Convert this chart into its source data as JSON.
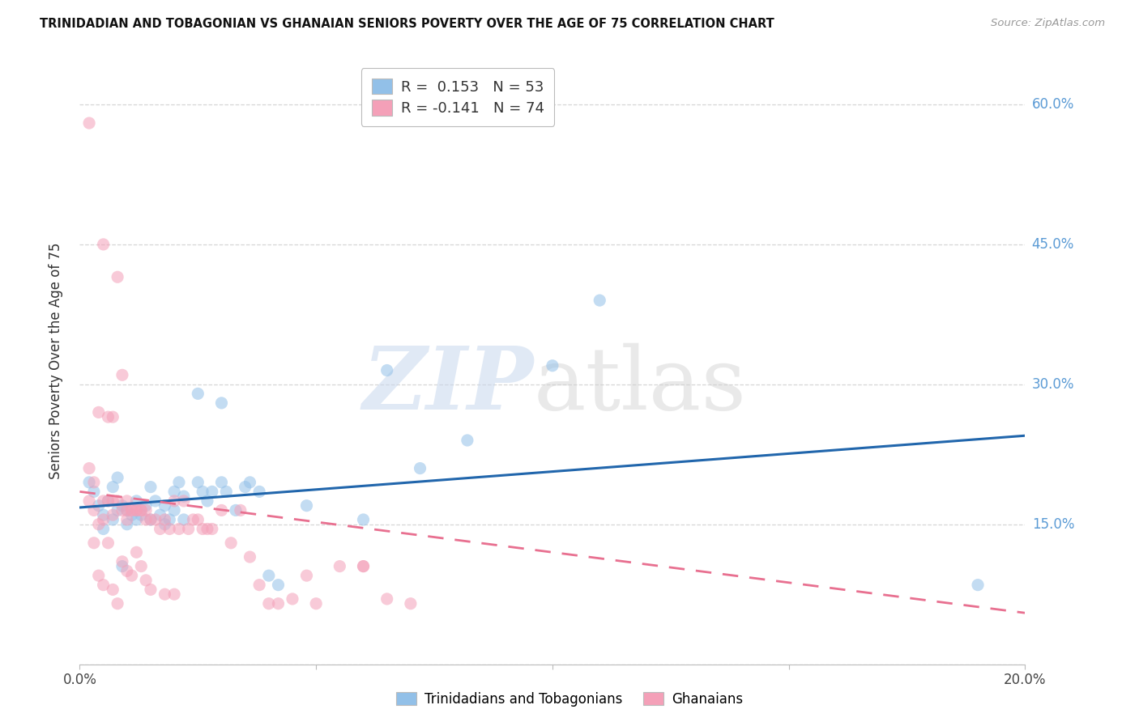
{
  "title": "TRINIDADIAN AND TOBAGONIAN VS GHANAIAN SENIORS POVERTY OVER THE AGE OF 75 CORRELATION CHART",
  "source": "Source: ZipAtlas.com",
  "ylabel": "Seniors Poverty Over the Age of 75",
  "xlim": [
    0.0,
    0.2
  ],
  "ylim": [
    0.0,
    0.65
  ],
  "yticks": [
    0.0,
    0.15,
    0.3,
    0.45,
    0.6
  ],
  "xticks": [
    0.0,
    0.05,
    0.1,
    0.15,
    0.2
  ],
  "xtick_labels": [
    "0.0%",
    "",
    "",
    "",
    "20.0%"
  ],
  "right_ytick_labels_vals": [
    0.6,
    0.45,
    0.3,
    0.15
  ],
  "right_ytick_labels_text": [
    "60.0%",
    "45.0%",
    "30.0%",
    "15.0%"
  ],
  "legend1_r": "0.153",
  "legend1_n": "53",
  "legend2_r": "-0.141",
  "legend2_n": "74",
  "color_blue": "#92C0E8",
  "color_pink": "#F4A0B8",
  "line_blue": "#2166AC",
  "line_pink": "#E87090",
  "legend_labels": [
    "Trinidadians and Tobagonians",
    "Ghanaians"
  ],
  "blue_trend": [
    0.0,
    0.168,
    0.2,
    0.245
  ],
  "pink_trend": [
    0.0,
    0.185,
    0.2,
    0.055
  ],
  "blue_scatter_x": [
    0.002,
    0.003,
    0.004,
    0.005,
    0.005,
    0.006,
    0.007,
    0.007,
    0.008,
    0.008,
    0.009,
    0.01,
    0.01,
    0.011,
    0.012,
    0.012,
    0.013,
    0.014,
    0.015,
    0.015,
    0.016,
    0.017,
    0.018,
    0.018,
    0.019,
    0.02,
    0.02,
    0.021,
    0.022,
    0.022,
    0.025,
    0.026,
    0.027,
    0.028,
    0.03,
    0.031,
    0.033,
    0.035,
    0.036,
    0.038,
    0.04,
    0.042,
    0.048,
    0.06,
    0.065,
    0.072,
    0.082,
    0.1,
    0.11,
    0.19,
    0.025,
    0.03,
    0.009
  ],
  "blue_scatter_y": [
    0.195,
    0.185,
    0.17,
    0.16,
    0.145,
    0.175,
    0.155,
    0.19,
    0.165,
    0.2,
    0.17,
    0.165,
    0.15,
    0.16,
    0.155,
    0.175,
    0.16,
    0.17,
    0.155,
    0.19,
    0.175,
    0.16,
    0.17,
    0.15,
    0.155,
    0.185,
    0.165,
    0.195,
    0.155,
    0.18,
    0.195,
    0.185,
    0.175,
    0.185,
    0.195,
    0.185,
    0.165,
    0.19,
    0.195,
    0.185,
    0.095,
    0.085,
    0.17,
    0.155,
    0.315,
    0.21,
    0.24,
    0.32,
    0.39,
    0.085,
    0.29,
    0.28,
    0.105
  ],
  "pink_scatter_x": [
    0.002,
    0.003,
    0.003,
    0.004,
    0.004,
    0.005,
    0.005,
    0.005,
    0.006,
    0.006,
    0.007,
    0.007,
    0.007,
    0.008,
    0.008,
    0.009,
    0.009,
    0.01,
    0.01,
    0.01,
    0.011,
    0.011,
    0.012,
    0.012,
    0.013,
    0.013,
    0.014,
    0.014,
    0.015,
    0.015,
    0.016,
    0.017,
    0.018,
    0.018,
    0.019,
    0.02,
    0.02,
    0.021,
    0.022,
    0.023,
    0.024,
    0.025,
    0.026,
    0.027,
    0.028,
    0.03,
    0.032,
    0.034,
    0.036,
    0.038,
    0.04,
    0.042,
    0.045,
    0.048,
    0.05,
    0.055,
    0.06,
    0.065,
    0.07,
    0.002,
    0.003,
    0.004,
    0.005,
    0.006,
    0.007,
    0.008,
    0.009,
    0.01,
    0.011,
    0.012,
    0.013,
    0.014,
    0.06,
    0.002
  ],
  "pink_scatter_y": [
    0.175,
    0.165,
    0.13,
    0.15,
    0.095,
    0.175,
    0.155,
    0.085,
    0.175,
    0.13,
    0.175,
    0.16,
    0.08,
    0.175,
    0.065,
    0.165,
    0.11,
    0.175,
    0.155,
    0.1,
    0.165,
    0.095,
    0.165,
    0.12,
    0.165,
    0.105,
    0.155,
    0.09,
    0.155,
    0.08,
    0.155,
    0.145,
    0.155,
    0.075,
    0.145,
    0.175,
    0.075,
    0.145,
    0.175,
    0.145,
    0.155,
    0.155,
    0.145,
    0.145,
    0.145,
    0.165,
    0.13,
    0.165,
    0.115,
    0.085,
    0.065,
    0.065,
    0.07,
    0.095,
    0.065,
    0.105,
    0.105,
    0.07,
    0.065,
    0.21,
    0.195,
    0.27,
    0.45,
    0.265,
    0.265,
    0.415,
    0.31,
    0.165,
    0.165,
    0.165,
    0.165,
    0.165,
    0.105,
    0.58
  ]
}
